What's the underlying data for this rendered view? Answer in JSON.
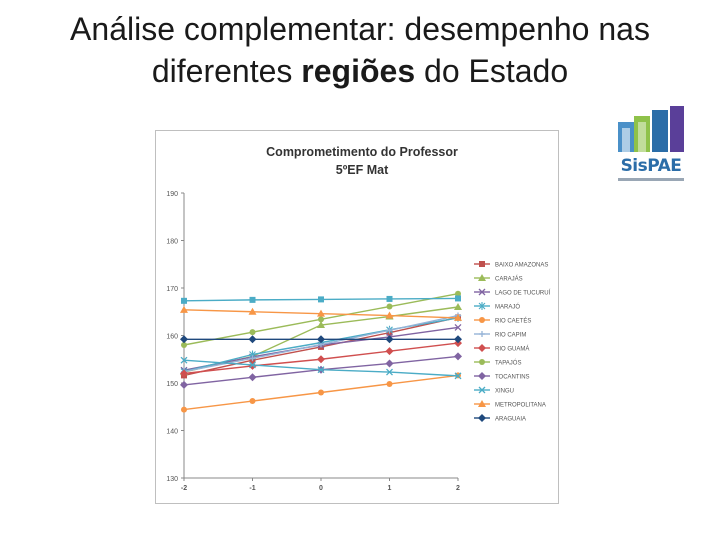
{
  "slide": {
    "title_line1": "Análise complementar: desempenho nas",
    "title_line2_prefix": "diferentes ",
    "title_line2_bold": "regiões",
    "title_line2_suffix": " do Estado"
  },
  "logo": {
    "text": "SisPAE"
  },
  "chart_data": {
    "type": "line",
    "title_line1": "Comprometimento do Professor",
    "title_line2": "5ºEF Mat",
    "x": [
      -2,
      -1,
      0,
      1,
      2
    ],
    "x_tick_labels": [
      "-2",
      "-1",
      "0",
      "1",
      "2"
    ],
    "ylim": [
      130,
      190
    ],
    "y_ticks": [
      130,
      140,
      150,
      160,
      170,
      180,
      190
    ],
    "grid": false,
    "legend_position": "right",
    "series": [
      {
        "name": "BAIXO AMAZONAS",
        "color": "#c0504d",
        "marker": "square",
        "values": [
          151.6,
          154.8,
          157.6,
          160.6,
          163.8
        ]
      },
      {
        "name": "CARAJÁS",
        "color": "#9bbb59",
        "marker": "triangle",
        "values": [
          152.3,
          155.6,
          162.2,
          164.0,
          166.0
        ]
      },
      {
        "name": "LAGO DE TUCURUÍ",
        "color": "#8064a2",
        "marker": "x",
        "values": [
          152.7,
          155.5,
          158.0,
          159.7,
          161.7
        ]
      },
      {
        "name": "MARAJÓ",
        "color": "#4bacc6",
        "marker": "star",
        "values": [
          152.4,
          156.0,
          158.5,
          161.2,
          163.7
        ]
      },
      {
        "name": "RIO CAETÉS",
        "color": "#f79646",
        "marker": "circle",
        "values": [
          144.4,
          146.2,
          148.0,
          149.8,
          151.6
        ]
      },
      {
        "name": "RIO CAPIM",
        "color": "#95b3d7",
        "marker": "plus",
        "values": [
          152.4,
          155.2,
          158.1,
          161.1,
          164.2
        ]
      },
      {
        "name": "RIO GUAMÁ",
        "color": "#d04f4f",
        "marker": "diamond",
        "values": [
          152.0,
          153.6,
          155.0,
          156.7,
          158.4
        ]
      },
      {
        "name": "TAPAJÓS",
        "color": "#9bbb59",
        "marker": "circle",
        "values": [
          158.0,
          160.7,
          163.4,
          166.1,
          168.8
        ]
      },
      {
        "name": "TOCANTINS",
        "color": "#8064a2",
        "marker": "diamond",
        "values": [
          149.6,
          151.2,
          152.8,
          154.1,
          155.6
        ]
      },
      {
        "name": "XINGU",
        "color": "#4bacc6",
        "marker": "x",
        "values": [
          154.8,
          153.8,
          152.8,
          152.3,
          151.5
        ]
      },
      {
        "name": "METROPOLITANA",
        "color": "#f79646",
        "marker": "triangle",
        "values": [
          165.4,
          165.0,
          164.6,
          164.2,
          163.7
        ]
      },
      {
        "name": "ARAGUAIA",
        "color": "#1f497d",
        "marker": "diamond",
        "values": [
          159.2,
          159.2,
          159.2,
          159.2,
          159.2
        ]
      },
      {
        "name": "",
        "color": "#4bacc6",
        "marker": "square",
        "values": [
          167.3,
          167.5,
          167.6,
          167.7,
          167.8
        ]
      }
    ]
  }
}
